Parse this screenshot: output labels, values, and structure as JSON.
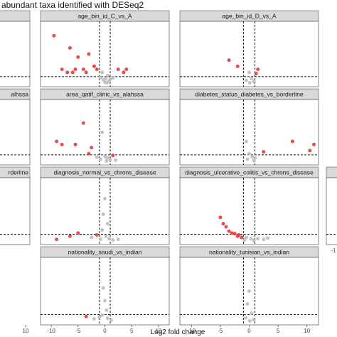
{
  "title": "abundant taxa identified with DESeq2",
  "x_axis_title": "Log2 fold change",
  "colors": {
    "significant": "#e03a3a",
    "not_significant": "#bdbdbd",
    "strip": "#d9d9d9",
    "panel_border": "#555555"
  },
  "chart_data": {
    "type": "scatter",
    "xlabel": "Log2 fold change",
    "ylabel": "",
    "grid": false,
    "xlim": [
      -12,
      12
    ],
    "ylim": [
      0,
      10
    ],
    "x_ticks_center": [
      "-10",
      "-5",
      "0",
      "5",
      "10"
    ],
    "x_ticks_right": [
      "-10",
      "-5",
      "0",
      "5",
      "10"
    ],
    "x_tick_left_partial": "10",
    "x_tick_far_right_partial": "-1",
    "reference_lines": {
      "vertical": [
        -1,
        1
      ],
      "horizontal": 1.3
    },
    "panels": [
      {
        "label": "",
        "points": []
      },
      {
        "label": "age_bin_id_C_vs_A",
        "points": [
          {
            "x": -9.5,
            "y": 8.0,
            "sig": true
          },
          {
            "x": -6.5,
            "y": 6.0,
            "sig": true
          },
          {
            "x": -5.0,
            "y": 4.5,
            "sig": true
          },
          {
            "x": -3.0,
            "y": 5.0,
            "sig": true
          },
          {
            "x": -2.0,
            "y": 3.0,
            "sig": true
          },
          {
            "x": -8.0,
            "y": 2.5,
            "sig": true
          },
          {
            "x": -6.0,
            "y": 2.0,
            "sig": true
          },
          {
            "x": -4.0,
            "y": 2.5,
            "sig": true
          },
          {
            "x": -7.0,
            "y": 2.0,
            "sig": true
          },
          {
            "x": -5.5,
            "y": 2.5,
            "sig": true
          },
          {
            "x": -3.5,
            "y": 2.0,
            "sig": true
          },
          {
            "x": -1.5,
            "y": 2.5,
            "sig": true
          },
          {
            "x": 2.5,
            "y": 2.5,
            "sig": true
          },
          {
            "x": 3.5,
            "y": 2.0,
            "sig": true
          },
          {
            "x": 4.0,
            "y": 2.5,
            "sig": true
          },
          {
            "x": -0.5,
            "y": 2.0,
            "sig": false
          },
          {
            "x": 0.5,
            "y": 1.5,
            "sig": false
          },
          {
            "x": 0.2,
            "y": 1.0,
            "sig": false
          },
          {
            "x": -0.3,
            "y": 0.8,
            "sig": false
          },
          {
            "x": 0.8,
            "y": 0.6,
            "sig": false
          },
          {
            "x": 1.5,
            "y": 1.1,
            "sig": false
          },
          {
            "x": 0.0,
            "y": 0.4,
            "sig": false
          },
          {
            "x": -0.8,
            "y": 1.2,
            "sig": false
          },
          {
            "x": 0.4,
            "y": 0.3,
            "sig": false
          },
          {
            "x": 1.0,
            "y": 0.9,
            "sig": false
          }
        ]
      },
      {
        "label": "age_bin_id_D_vs_A",
        "points": [
          {
            "x": -3.5,
            "y": 4.0,
            "sig": true
          },
          {
            "x": -2.0,
            "y": 3.0,
            "sig": true
          },
          {
            "x": 1.5,
            "y": 2.5,
            "sig": true
          },
          {
            "x": 1.2,
            "y": 1.8,
            "sig": true
          },
          {
            "x": 0.0,
            "y": 2.0,
            "sig": false
          },
          {
            "x": 0.4,
            "y": 1.0,
            "sig": false
          },
          {
            "x": -0.5,
            "y": 0.7,
            "sig": false
          },
          {
            "x": 0.8,
            "y": 0.5,
            "sig": false
          },
          {
            "x": 0.1,
            "y": 0.3,
            "sig": false
          }
        ]
      },
      {
        "label": "alhssa",
        "points": []
      },
      {
        "label": "area_qatif_clinic_vs_alahssa",
        "points": [
          {
            "x": -4.0,
            "y": 6.5,
            "sig": true
          },
          {
            "x": -9.0,
            "y": 3.5,
            "sig": true
          },
          {
            "x": -8.0,
            "y": 3.0,
            "sig": true
          },
          {
            "x": -5.5,
            "y": 3.0,
            "sig": true
          },
          {
            "x": -2.5,
            "y": 2.5,
            "sig": true
          },
          {
            "x": -3.0,
            "y": 1.5,
            "sig": true
          },
          {
            "x": 1.5,
            "y": 1.2,
            "sig": true
          },
          {
            "x": -0.5,
            "y": 5.0,
            "sig": false
          },
          {
            "x": 0.0,
            "y": 1.0,
            "sig": false
          },
          {
            "x": 0.5,
            "y": 0.8,
            "sig": false
          },
          {
            "x": -0.8,
            "y": 0.6,
            "sig": false
          },
          {
            "x": 1.0,
            "y": 0.5,
            "sig": false
          },
          {
            "x": -1.5,
            "y": 0.9,
            "sig": false
          },
          {
            "x": 2.0,
            "y": 0.4,
            "sig": false
          },
          {
            "x": 0.3,
            "y": 0.3,
            "sig": false
          }
        ]
      },
      {
        "label": "diabetes_status_diabetes_vs_borderline",
        "points": [
          {
            "x": 7.5,
            "y": 3.5,
            "sig": true
          },
          {
            "x": 10.5,
            "y": 2.0,
            "sig": true
          },
          {
            "x": 11.2,
            "y": 3.0,
            "sig": true
          },
          {
            "x": 2.5,
            "y": 1.8,
            "sig": true
          },
          {
            "x": -0.5,
            "y": 3.5,
            "sig": false
          },
          {
            "x": 0.0,
            "y": 1.5,
            "sig": false
          },
          {
            "x": 0.5,
            "y": 1.0,
            "sig": false
          },
          {
            "x": -0.3,
            "y": 0.6,
            "sig": false
          },
          {
            "x": 0.8,
            "y": 0.4,
            "sig": false
          },
          {
            "x": 1.0,
            "y": 0.8,
            "sig": false
          }
        ]
      },
      {
        "label": "rderline",
        "points": []
      },
      {
        "label": "diagnosis_normal_vs_chrons_disease",
        "points": [
          {
            "x": -9.0,
            "y": 0.5,
            "sig": true
          },
          {
            "x": -6.5,
            "y": 1.0,
            "sig": true
          },
          {
            "x": -5.0,
            "y": 1.5,
            "sig": true
          },
          {
            "x": -1.5,
            "y": 1.2,
            "sig": true
          },
          {
            "x": 0.0,
            "y": 7.0,
            "sig": false
          },
          {
            "x": -0.3,
            "y": 4.5,
            "sig": false
          },
          {
            "x": 0.5,
            "y": 3.0,
            "sig": false
          },
          {
            "x": -0.5,
            "y": 2.0,
            "sig": false
          },
          {
            "x": 0.2,
            "y": 1.0,
            "sig": false
          },
          {
            "x": 0.8,
            "y": 0.6,
            "sig": false
          },
          {
            "x": -0.8,
            "y": 0.5,
            "sig": false
          },
          {
            "x": 1.5,
            "y": 0.4,
            "sig": false
          },
          {
            "x": -2.5,
            "y": 0.8,
            "sig": false
          },
          {
            "x": 2.5,
            "y": 0.5,
            "sig": false
          }
        ]
      },
      {
        "label": "diagnosis_ulcerative_colitis_vs_chrons_disease",
        "points": [
          {
            "x": -5.0,
            "y": 4.0,
            "sig": true
          },
          {
            "x": -4.0,
            "y": 2.5,
            "sig": true
          },
          {
            "x": -3.5,
            "y": 1.8,
            "sig": true
          },
          {
            "x": -2.5,
            "y": 1.4,
            "sig": true
          },
          {
            "x": -1.8,
            "y": 1.2,
            "sig": true
          },
          {
            "x": -4.5,
            "y": 3.0,
            "sig": true
          },
          {
            "x": -2.0,
            "y": 1.0,
            "sig": true
          },
          {
            "x": -3.0,
            "y": 1.5,
            "sig": true
          },
          {
            "x": -1.3,
            "y": 0.8,
            "sig": true
          },
          {
            "x": -0.5,
            "y": 0.8,
            "sig": false
          },
          {
            "x": 0.3,
            "y": 0.6,
            "sig": false
          },
          {
            "x": 1.5,
            "y": 0.6,
            "sig": false
          },
          {
            "x": 2.5,
            "y": 0.5,
            "sig": false
          },
          {
            "x": 3.2,
            "y": 0.7,
            "sig": false
          },
          {
            "x": -0.8,
            "y": 0.4,
            "sig": false
          },
          {
            "x": 0.8,
            "y": 0.3,
            "sig": false
          }
        ]
      },
      {
        "label": "",
        "points": []
      },
      {
        "label": "nationality_saudi_vs_indian",
        "points": [
          {
            "x": -3.5,
            "y": 1.0,
            "sig": true
          },
          {
            "x": -0.3,
            "y": 5.5,
            "sig": false
          },
          {
            "x": 0.0,
            "y": 3.5,
            "sig": false
          },
          {
            "x": 0.3,
            "y": 2.0,
            "sig": false
          },
          {
            "x": -0.5,
            "y": 1.2,
            "sig": false
          },
          {
            "x": 0.5,
            "y": 0.7,
            "sig": false
          },
          {
            "x": -2.0,
            "y": 0.6,
            "sig": false
          },
          {
            "x": 1.2,
            "y": 0.4,
            "sig": false
          },
          {
            "x": -1.0,
            "y": 0.9,
            "sig": false
          }
        ]
      },
      {
        "label": "nationality_tunisian_vs_indian",
        "points": [
          {
            "x": 0.0,
            "y": 5.0,
            "sig": false
          },
          {
            "x": -0.3,
            "y": 3.0,
            "sig": false
          },
          {
            "x": 0.4,
            "y": 1.5,
            "sig": false
          },
          {
            "x": -0.6,
            "y": 0.8,
            "sig": false
          },
          {
            "x": 0.8,
            "y": 0.5,
            "sig": false
          },
          {
            "x": 0.1,
            "y": 0.3,
            "sig": false
          }
        ]
      }
    ]
  }
}
